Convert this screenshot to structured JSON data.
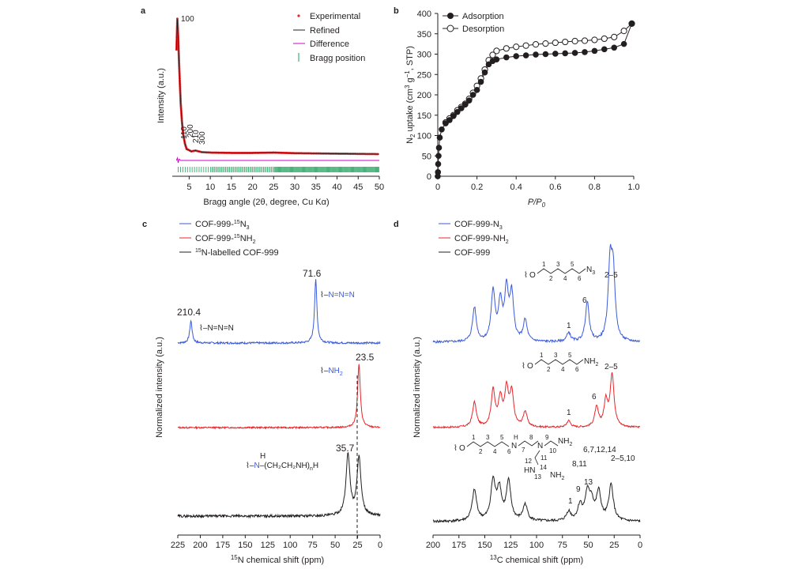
{
  "panels": {
    "a": {
      "letter": "a",
      "xlabel": "Bragg angle (2θ, degree, Cu Kα)",
      "ylabel": "Intensity (a.u.)",
      "xticks": [
        "5",
        "10",
        "15",
        "20",
        "25",
        "30",
        "35",
        "40",
        "45",
        "50"
      ],
      "legend": [
        "Experimental",
        "Refined",
        "Difference",
        "Bragg position"
      ],
      "peaks": [
        "100",
        "110",
        "200",
        "210",
        "300"
      ],
      "colors": {
        "experimental": "#e8262a",
        "refined": "#231f20",
        "difference": "#d100d1",
        "bragg": "#1aa05a"
      }
    },
    "b": {
      "letter": "b",
      "xlabel": "P/P",
      "xlabel_sub": "0",
      "ylabel_pre": "N",
      "ylabel_sub": "2",
      "ylabel_mid": " uptake (cm",
      "ylabel_sup1": "3",
      "ylabel_mid2": " g",
      "ylabel_sup2": "−1",
      "ylabel_post": ", STP)",
      "xticks": [
        "0",
        "0.2",
        "0.4",
        "0.6",
        "0.8",
        "1.0"
      ],
      "yticks": [
        "0",
        "50",
        "100",
        "150",
        "200",
        "250",
        "300",
        "350",
        "400"
      ],
      "legend": [
        "Adsorption",
        "Desorption"
      ]
    },
    "c": {
      "letter": "c",
      "xlabel_sup": "15",
      "xlabel": "N chemical shift (ppm)",
      "ylabel": "Normalized intensity (a.u.)",
      "xticks": [
        "225",
        "200",
        "175",
        "150",
        "125",
        "100",
        "75",
        "50",
        "25",
        "0"
      ],
      "legend": [
        {
          "pre": "COF-999-",
          "sup": "15",
          "base": "N",
          "sub": "3",
          "color": "#3b5bd9"
        },
        {
          "pre": "COF-999-",
          "sup": "15",
          "base": "NH",
          "sub": "2",
          "color": "#e8262a"
        },
        {
          "pre": "",
          "sup": "15",
          "base": "N-labelled COF-999",
          "sub": "",
          "color": "#231f20"
        }
      ],
      "peak_labels": [
        "210.4",
        "71.6",
        "23.5",
        "35.7"
      ],
      "struct_azide_right": "N=N=N",
      "struct_azide_left": "–N=N=N",
      "struct_amine": "NH",
      "struct_amine_sub": "2",
      "struct_poly": "N",
      "struct_poly_h": "H",
      "struct_poly_tail": "(CH₂CH₂NH)",
      "struct_poly_n": "n",
      "struct_poly_end": "H"
    },
    "d": {
      "letter": "d",
      "xlabel_sup": "13",
      "xlabel": "C chemical shift (ppm)",
      "ylabel": "Normalized intensity (a.u.)",
      "xticks": [
        "200",
        "175",
        "150",
        "125",
        "100",
        "75",
        "50",
        "25",
        "0"
      ],
      "legend": [
        {
          "text": "COF-999-N",
          "sub": "3",
          "color": "#3b5bd9"
        },
        {
          "text": "COF-999-NH",
          "sub": "2",
          "color": "#e8262a"
        },
        {
          "text": "COF-999",
          "sub": "",
          "color": "#231f20"
        }
      ],
      "labels_blue": [
        "1",
        "6",
        "2–5"
      ],
      "labels_red": [
        "1",
        "6",
        "2–5"
      ],
      "labels_black": [
        "1",
        "9",
        "13",
        "8,11",
        "6,7,12,14",
        "2–5,10"
      ],
      "chain_n3": {
        "o": "O",
        "nums": [
          "1",
          "2",
          "3",
          "4",
          "5",
          "6"
        ],
        "end": "N",
        "end_sub": "3"
      },
      "chain_nh2": {
        "o": "O",
        "nums": [
          "1",
          "2",
          "3",
          "4",
          "5",
          "6"
        ],
        "end": "NH",
        "end_sub": "2"
      },
      "chain_cof": {
        "o": "O",
        "nums": [
          "1",
          "2",
          "3",
          "4",
          "5",
          "6",
          "7",
          "8",
          "9",
          "10",
          "11",
          "12",
          "13",
          "14"
        ],
        "n1": "N",
        "h1": "H",
        "n2": "N",
        "nh2a": "NH",
        "nh2a_sub": "2",
        "hn": "HN",
        "nh2b": "NH",
        "nh2b_sub": "2"
      }
    }
  },
  "chart_data": [
    {
      "panel": "a",
      "type": "line",
      "xlabel": "Bragg angle (2θ, degree, Cu Kα)",
      "ylabel": "Intensity (a.u.)",
      "xlim": [
        1,
        50
      ],
      "series": [
        {
          "name": "Experimental",
          "x": [
            2.0,
            2.2,
            2.4,
            2.6,
            2.8,
            3.0,
            3.3,
            3.6,
            4.0,
            4.4,
            4.8,
            5.5,
            6.5,
            8,
            10,
            15,
            20,
            25,
            30,
            40,
            50
          ],
          "y": [
            80,
            100,
            88,
            72,
            58,
            45,
            33,
            25,
            19,
            15.5,
            15,
            14,
            14.5,
            13.5,
            13.2,
            13,
            13,
            13.2,
            12.8,
            12.5,
            12.2
          ]
        },
        {
          "name": "Refined",
          "x": [
            2.0,
            2.2,
            2.4,
            2.6,
            2.8,
            3.0,
            3.3,
            3.6,
            4.0,
            4.4,
            4.8,
            5.5,
            6.5,
            8,
            10,
            15,
            20,
            25,
            30,
            40,
            50
          ],
          "y": [
            80,
            100,
            88,
            72,
            58,
            45,
            33,
            25,
            19,
            15.5,
            15,
            14,
            14.5,
            13.5,
            13.2,
            13,
            13,
            13.2,
            12.8,
            12.5,
            12.2
          ]
        },
        {
          "name": "Difference",
          "x": [
            2,
            2.2,
            2.4,
            2.6,
            3,
            4,
            10,
            50
          ],
          "y": [
            0,
            1.5,
            -1.5,
            0.8,
            0,
            0,
            0,
            0
          ]
        }
      ],
      "peaks": [
        "100",
        "110",
        "200",
        "210",
        "300"
      ]
    },
    {
      "panel": "b",
      "type": "scatter",
      "xlabel": "P/P0",
      "ylabel": "N2 uptake (cm3 g−1, STP)",
      "xlim": [
        0,
        1.0
      ],
      "ylim": [
        0,
        400
      ],
      "series": [
        {
          "name": "Adsorption",
          "x": [
            0.0,
            0.001,
            0.002,
            0.004,
            0.006,
            0.01,
            0.02,
            0.04,
            0.06,
            0.08,
            0.1,
            0.12,
            0.14,
            0.16,
            0.18,
            0.2,
            0.22,
            0.24,
            0.26,
            0.28,
            0.3,
            0.35,
            0.4,
            0.45,
            0.5,
            0.55,
            0.6,
            0.65,
            0.7,
            0.75,
            0.8,
            0.85,
            0.9,
            0.95,
            0.99
          ],
          "y": [
            0,
            10,
            30,
            50,
            70,
            95,
            115,
            130,
            138,
            148,
            158,
            167,
            176,
            186,
            200,
            212,
            232,
            255,
            275,
            283,
            287,
            292,
            295,
            297,
            299,
            300,
            301,
            302,
            303,
            305,
            308,
            312,
            316,
            325,
            375
          ]
        },
        {
          "name": "Desorption",
          "x": [
            0.99,
            0.95,
            0.9,
            0.85,
            0.8,
            0.75,
            0.7,
            0.65,
            0.6,
            0.55,
            0.5,
            0.45,
            0.4,
            0.35,
            0.3,
            0.28,
            0.26,
            0.24,
            0.22,
            0.2,
            0.18,
            0.16,
            0.14,
            0.12,
            0.1,
            0.08,
            0.06,
            0.04
          ],
          "y": [
            375,
            357,
            342,
            338,
            335,
            333,
            332,
            330,
            328,
            326,
            324,
            321,
            318,
            314,
            308,
            298,
            285,
            262,
            240,
            222,
            205,
            190,
            178,
            170,
            162,
            150,
            142,
            132
          ]
        }
      ]
    },
    {
      "panel": "c",
      "type": "line",
      "xlabel": "15N chemical shift (ppm)",
      "ylabel": "Normalized intensity (a.u.)",
      "xlim": [
        225,
        0
      ],
      "series": [
        {
          "name": "COF-999-15N3",
          "peaks": [
            {
              "ppm": 210.4,
              "rel": 0.35
            },
            {
              "ppm": 71.6,
              "rel": 1.0
            }
          ]
        },
        {
          "name": "COF-999-15NH2",
          "peaks": [
            {
              "ppm": 23.5,
              "rel": 1.0
            }
          ]
        },
        {
          "name": "15N-labelled COF-999",
          "peaks": [
            {
              "ppm": 35.7,
              "rel": 1.0
            },
            {
              "ppm": 23.5,
              "rel": 0.95
            }
          ]
        }
      ],
      "peak_labels": [
        "210.4",
        "71.6",
        "23.5",
        "35.7"
      ]
    },
    {
      "panel": "d",
      "type": "line",
      "xlabel": "13C chemical shift (ppm)",
      "ylabel": "Normalized intensity (a.u.)",
      "xlim": [
        200,
        0
      ],
      "series": [
        {
          "name": "COF-999-N3",
          "peaks": [
            {
              "ppm": 160,
              "rel": 0.45
            },
            {
              "ppm": 142,
              "rel": 0.65
            },
            {
              "ppm": 135,
              "rel": 0.5
            },
            {
              "ppm": 129,
              "rel": 0.65
            },
            {
              "ppm": 124,
              "rel": 0.6
            },
            {
              "ppm": 111,
              "rel": 0.28
            },
            {
              "ppm": 69,
              "rel": 0.12
            },
            {
              "ppm": 51,
              "rel": 0.52
            },
            {
              "ppm": 29,
              "rel": 0.95
            },
            {
              "ppm": 26,
              "rel": 0.85
            }
          ]
        },
        {
          "name": "COF-999-NH2",
          "peaks": [
            {
              "ppm": 160,
              "rel": 0.45
            },
            {
              "ppm": 142,
              "rel": 0.65
            },
            {
              "ppm": 135,
              "rel": 0.5
            },
            {
              "ppm": 129,
              "rel": 0.65
            },
            {
              "ppm": 124,
              "rel": 0.6
            },
            {
              "ppm": 111,
              "rel": 0.28
            },
            {
              "ppm": 69,
              "rel": 0.12
            },
            {
              "ppm": 42,
              "rel": 0.35
            },
            {
              "ppm": 33,
              "rel": 0.45
            },
            {
              "ppm": 27,
              "rel": 0.95
            }
          ]
        },
        {
          "name": "COF-999",
          "peaks": [
            {
              "ppm": 160,
              "rel": 0.6
            },
            {
              "ppm": 142,
              "rel": 0.75
            },
            {
              "ppm": 136,
              "rel": 0.6
            },
            {
              "ppm": 127,
              "rel": 0.75
            },
            {
              "ppm": 111,
              "rel": 0.32
            },
            {
              "ppm": 69,
              "rel": 0.18
            },
            {
              "ppm": 58,
              "rel": 0.3
            },
            {
              "ppm": 51,
              "rel": 0.5
            },
            {
              "ppm": 47,
              "rel": 0.35
            },
            {
              "ppm": 40,
              "rel": 0.55
            },
            {
              "ppm": 28,
              "rel": 0.7
            }
          ]
        }
      ]
    }
  ]
}
